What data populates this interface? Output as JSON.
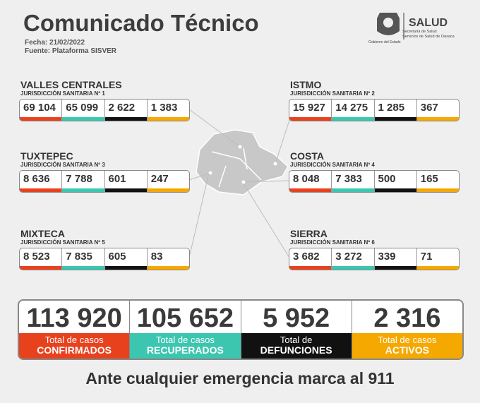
{
  "header": {
    "title": "Comunicado Técnico",
    "date": "Fecha: 21/02/2022",
    "source": "Fuente: Plataforma SISVER"
  },
  "logo": {
    "brand": "SALUD",
    "line1": "Secretaría de Salud",
    "line2": "Servicios de Salud de Oaxaca",
    "caption": "Gobierno del Estado"
  },
  "regions": [
    {
      "name": "VALLES CENTRALES",
      "jurisdiction": "JURISDICCIÓN SANITARIA Nº 1",
      "values": [
        "69 104",
        "65 099",
        "2 622",
        "1 383"
      ]
    },
    {
      "name": "ISTMO",
      "jurisdiction": "JURISDICCIÓN SANITARIA Nº 2",
      "values": [
        "15 927",
        "14 275",
        "1 285",
        "367"
      ]
    },
    {
      "name": "TUXTEPEC",
      "jurisdiction": "JURISDICCIÓN SANITARIA Nº 3",
      "values": [
        "8 636",
        "7 788",
        "601",
        "247"
      ]
    },
    {
      "name": "COSTA",
      "jurisdiction": "JURISDICCIÓN SANITARIA Nº 4",
      "values": [
        "8 048",
        "7 383",
        "500",
        "165"
      ]
    },
    {
      "name": "MIXTECA",
      "jurisdiction": "JURISDICCIÓN SANITARIA Nº 5",
      "values": [
        "8 523",
        "7 835",
        "605",
        "83"
      ]
    },
    {
      "name": "SIERRA",
      "jurisdiction": "JURISDICCIÓN SANITARIA Nº 6",
      "values": [
        "3 682",
        "3 272",
        "339",
        "71"
      ]
    }
  ],
  "totals": [
    {
      "value": "113 920",
      "line1": "Total de casos",
      "line2": "CONFIRMADOS"
    },
    {
      "value": "105 652",
      "line1": "Total de casos",
      "line2": "RECUPERADOS"
    },
    {
      "value": "5 952",
      "line1": "Total de",
      "line2": "DEFUNCIONES"
    },
    {
      "value": "2 316",
      "line1": "Total de casos",
      "line2": "ACTIVOS"
    }
  ],
  "footer": "Ante cualquier emergencia marca al 911"
}
